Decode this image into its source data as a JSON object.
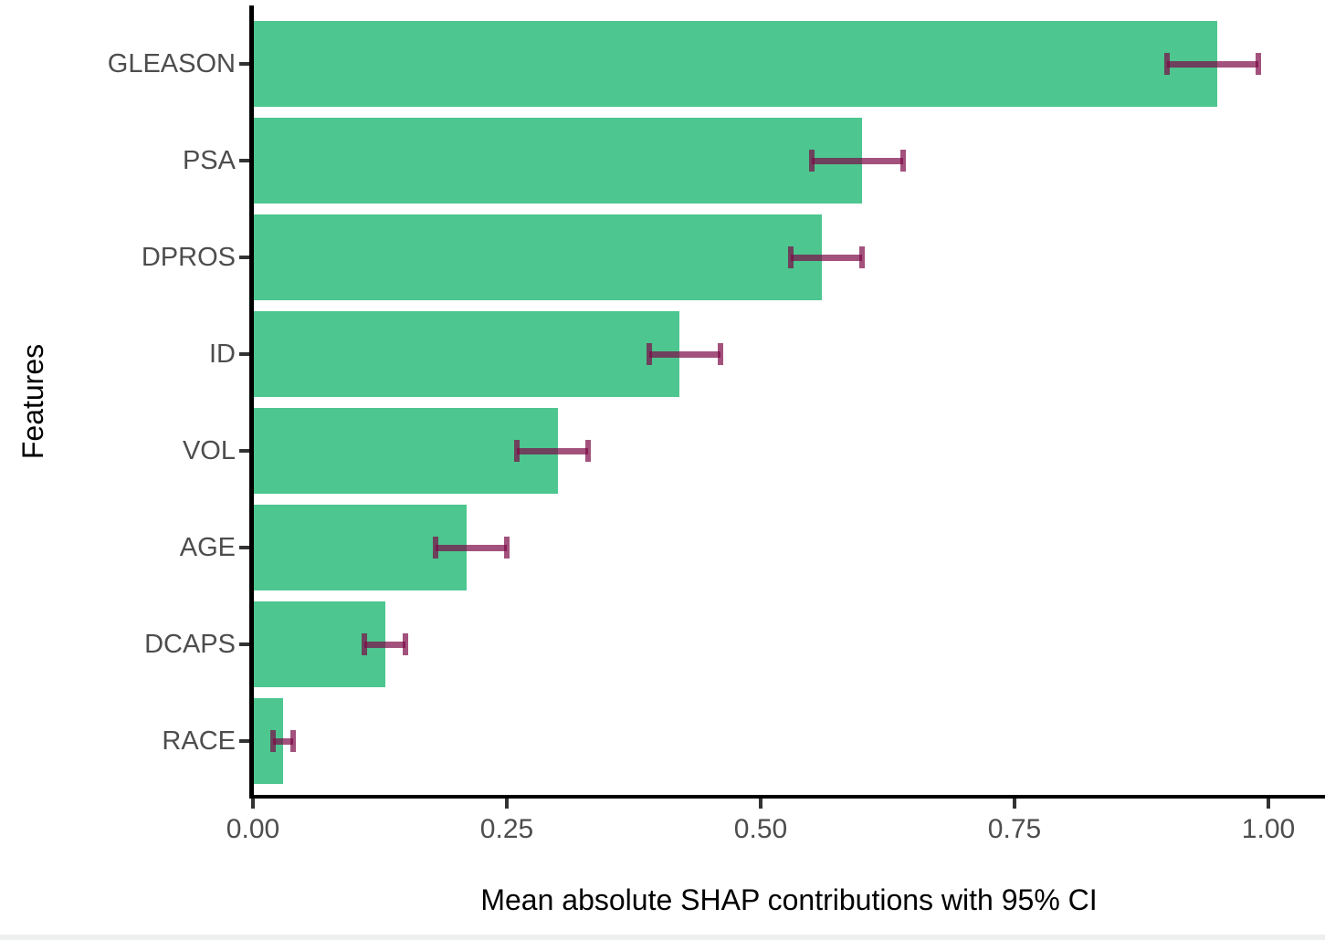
{
  "chart_data": {
    "type": "bar",
    "orientation": "horizontal",
    "xlabel": "Mean absolute SHAP contributions with 95% CI",
    "ylabel": "Features",
    "categories": [
      "GLEASON",
      "PSA",
      "DPROS",
      "ID",
      "VOL",
      "AGE",
      "DCAPS",
      "RACE"
    ],
    "values": [
      0.95,
      0.6,
      0.56,
      0.42,
      0.3,
      0.21,
      0.13,
      0.03
    ],
    "ci_low": [
      0.9,
      0.55,
      0.53,
      0.39,
      0.26,
      0.18,
      0.11,
      0.02
    ],
    "ci_high": [
      0.99,
      0.64,
      0.6,
      0.46,
      0.33,
      0.25,
      0.15,
      0.04
    ],
    "x_tick_labels": [
      "0.00",
      "0.25",
      "0.50",
      "0.75",
      "1.00"
    ],
    "x_tick_values": [
      0,
      0.25,
      0.5,
      0.75,
      1.0
    ],
    "xlim": [
      0,
      1.055
    ],
    "grid": false,
    "legend": false,
    "colors": {
      "bar": "#4DC68F",
      "error_bar": "#7C0846",
      "error_bar_opacity": 0.7,
      "axis_line": "#000000",
      "tick": "#333333",
      "tick_label": "#4D4D4D",
      "axis_title": "#000000",
      "bottom_strip": "#EEF0F0"
    }
  }
}
